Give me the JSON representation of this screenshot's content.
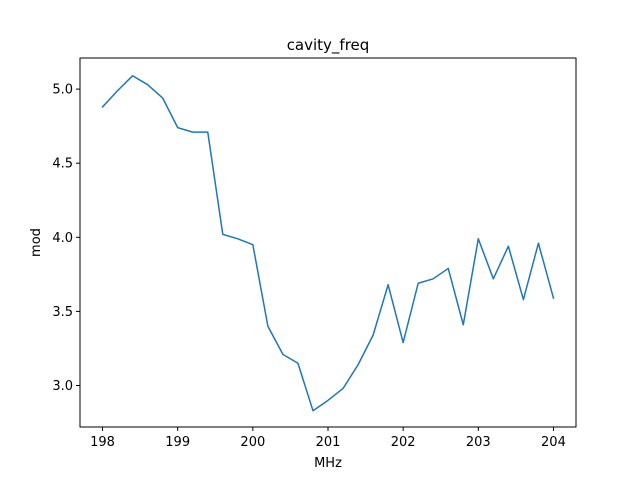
{
  "chart_data": {
    "type": "line",
    "title": "cavity_freq",
    "xlabel": "MHz",
    "ylabel": "mod",
    "xlim": [
      197.7,
      204.3
    ],
    "ylim": [
      2.72,
      5.21
    ],
    "grid": false,
    "x_ticks": [
      198,
      199,
      200,
      201,
      202,
      203,
      204
    ],
    "x_tick_labels": [
      "198",
      "199",
      "200",
      "201",
      "202",
      "203",
      "204"
    ],
    "y_ticks": [
      3.0,
      3.5,
      4.0,
      4.5,
      5.0
    ],
    "y_tick_labels": [
      "3.0",
      "3.5",
      "4.0",
      "4.5",
      "5.0"
    ],
    "series": [
      {
        "color": "#1f77b4",
        "x": [
          198.0,
          198.2,
          198.4,
          198.6,
          198.8,
          199.0,
          199.2,
          199.4,
          199.6,
          199.8,
          200.0,
          200.2,
          200.4,
          200.6,
          200.8,
          201.0,
          201.2,
          201.4,
          201.6,
          201.8,
          202.0,
          202.2,
          202.4,
          202.6,
          202.8,
          203.0,
          203.2,
          203.4,
          203.6,
          203.8,
          204.0
        ],
        "y": [
          4.88,
          4.99,
          5.09,
          5.03,
          4.94,
          4.74,
          4.71,
          4.71,
          4.02,
          3.99,
          3.95,
          3.4,
          3.21,
          3.15,
          2.83,
          2.9,
          2.98,
          3.14,
          3.34,
          3.68,
          3.29,
          3.69,
          3.72,
          3.79,
          3.41,
          3.99,
          3.72,
          3.94,
          3.58,
          3.96,
          3.59
        ]
      }
    ]
  }
}
